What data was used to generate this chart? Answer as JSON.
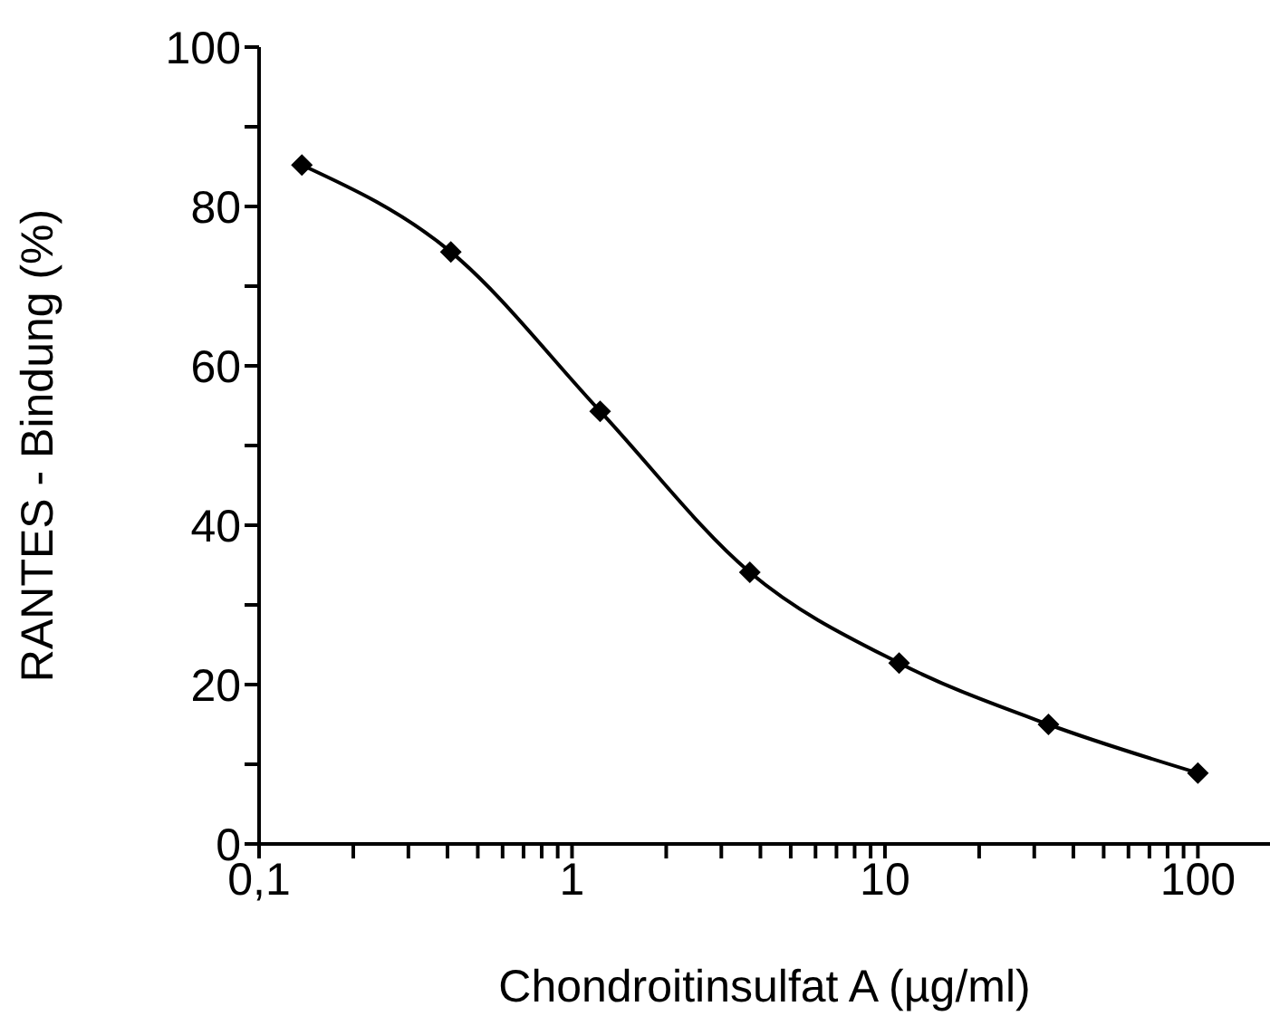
{
  "chart_data": {
    "type": "line",
    "xlabel": "Chondroitinsulfat A (µg/ml)",
    "ylabel": "RANTES - Bindung (%)",
    "x": [
      0.137,
      0.41,
      1.23,
      3.7,
      11.1,
      33.3,
      100
    ],
    "series": [
      {
        "color": "#000000",
        "values": [
          85.2,
          74.3,
          54.3,
          34.1,
          22.7,
          15.0,
          8.9
        ]
      }
    ],
    "log": "x",
    "xlim": [
      0.1,
      170
    ],
    "xticks": [
      {
        "value": 0.1,
        "label": "0,1"
      },
      {
        "value": 0.2,
        "label": null
      },
      {
        "value": 0.3,
        "label": null
      },
      {
        "value": 0.4,
        "label": null
      },
      {
        "value": 0.5,
        "label": null
      },
      {
        "value": 0.6,
        "label": null
      },
      {
        "value": 0.7,
        "label": null
      },
      {
        "value": 0.8,
        "label": null
      },
      {
        "value": 0.9,
        "label": null
      },
      1,
      {
        "value": 2,
        "label": null
      },
      {
        "value": 3,
        "label": null
      },
      {
        "value": 4,
        "label": null
      },
      {
        "value": 5,
        "label": null
      },
      {
        "value": 6,
        "label": null
      },
      {
        "value": 7,
        "label": null
      },
      {
        "value": 8,
        "label": null
      },
      {
        "value": 9,
        "label": null
      },
      10,
      {
        "value": 20,
        "label": null
      },
      {
        "value": 30,
        "label": null
      },
      {
        "value": 40,
        "label": null
      },
      {
        "value": 50,
        "label": null
      },
      {
        "value": 60,
        "label": null
      },
      {
        "value": 70,
        "label": null
      },
      {
        "value": 80,
        "label": null
      },
      {
        "value": 90,
        "label": null
      },
      100
    ],
    "ylim": [
      0,
      100
    ],
    "yticks": [
      0,
      {
        "value": 10,
        "label": null
      },
      20,
      {
        "value": 30,
        "label": null
      },
      40,
      {
        "value": 50,
        "label": null
      },
      60,
      {
        "value": 70,
        "label": null
      },
      80,
      {
        "value": 90,
        "label": null
      },
      100
    ],
    "grid": false,
    "legend": false,
    "marker": "diamond",
    "line_style": "solid"
  }
}
